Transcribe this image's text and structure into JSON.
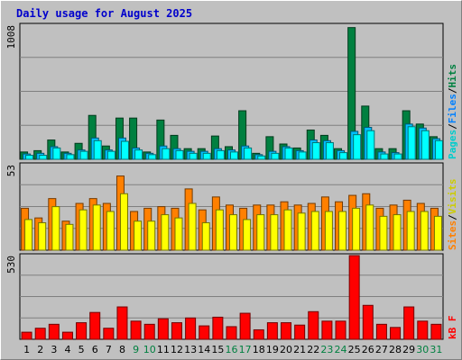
{
  "chart_data": {
    "type": "bar",
    "title": "Daily usage for August 2025",
    "categories": [
      "1",
      "2",
      "3",
      "4",
      "5",
      "6",
      "7",
      "8",
      "9",
      "10",
      "11",
      "12",
      "13",
      "14",
      "15",
      "16",
      "17",
      "18",
      "19",
      "20",
      "21",
      "22",
      "23",
      "24",
      "25",
      "26",
      "27",
      "28",
      "29",
      "30",
      "31"
    ],
    "weekend_days": [
      "9",
      "10",
      "16",
      "17",
      "23",
      "24",
      "30",
      "31"
    ],
    "panels": [
      {
        "name": "hits_files_pages",
        "max_label": "1008",
        "ylim": [
          0,
          1008
        ],
        "legend": [
          "Pages",
          "/",
          "Files",
          "/",
          "Hits"
        ],
        "series": [
          {
            "name": "Hits",
            "color": "#008040",
            "values": [
              55,
              65,
              145,
              55,
              120,
              330,
              100,
              310,
              310,
              55,
              295,
              180,
              80,
              80,
              175,
              95,
              365,
              45,
              170,
              115,
              85,
              220,
              180,
              80,
              990,
              400,
              80,
              80,
              365,
              265,
              170
            ]
          },
          {
            "name": "Files",
            "color": "#00c0ff",
            "values": [
              40,
              45,
              95,
              45,
              70,
              160,
              70,
              160,
              85,
              45,
              100,
              80,
              60,
              60,
              80,
              70,
              100,
              35,
              60,
              95,
              65,
              145,
              140,
              65,
              210,
              240,
              55,
              50,
              265,
              235,
              155
            ]
          },
          {
            "name": "Pages",
            "color": "#00ffff",
            "values": [
              30,
              30,
              85,
              35,
              60,
              140,
              60,
              135,
              70,
              35,
              80,
              65,
              45,
              45,
              65,
              55,
              85,
              25,
              45,
              85,
              55,
              125,
              125,
              50,
              185,
              215,
              40,
              40,
              245,
              215,
              140
            ]
          }
        ]
      },
      {
        "name": "visits_sites",
        "max_label": "53",
        "ylim": [
          0,
          53
        ],
        "legend": [
          "Sites",
          "/",
          "Visits"
        ],
        "series": [
          {
            "name": "Visits",
            "color": "#ff8000",
            "values": [
              26,
              20,
              32,
              18,
              29,
              32,
              29,
              46,
              24,
              26,
              27,
              26,
              38,
              25,
              33,
              28,
              26,
              28,
              28,
              30,
              28,
              29,
              33,
              30,
              34,
              35,
              26,
              28,
              31,
              29,
              26
            ]
          },
          {
            "name": "Sites",
            "color": "#ffff00",
            "values": [
              19,
              17,
              27,
              16,
              25,
              28,
              24,
              35,
              18,
              18,
              22,
              20,
              29,
              17,
              25,
              22,
              19,
              22,
              22,
              25,
              23,
              24,
              24,
              24,
              26,
              28,
              21,
              22,
              24,
              24,
              21
            ]
          }
        ]
      },
      {
        "name": "kbytes",
        "max_label": "530",
        "ylim": [
          0,
          530
        ],
        "legend": [
          "kB",
          "F"
        ],
        "series": [
          {
            "name": "KBytes",
            "color": "#ff0000",
            "values": [
              45,
              70,
              95,
              45,
              105,
              170,
              70,
              205,
              115,
              95,
              130,
              105,
              135,
              85,
              140,
              80,
              165,
              60,
              105,
              105,
              90,
              175,
              115,
              115,
              530,
              215,
              95,
              75,
              205,
              115,
              95
            ]
          }
        ]
      }
    ]
  }
}
